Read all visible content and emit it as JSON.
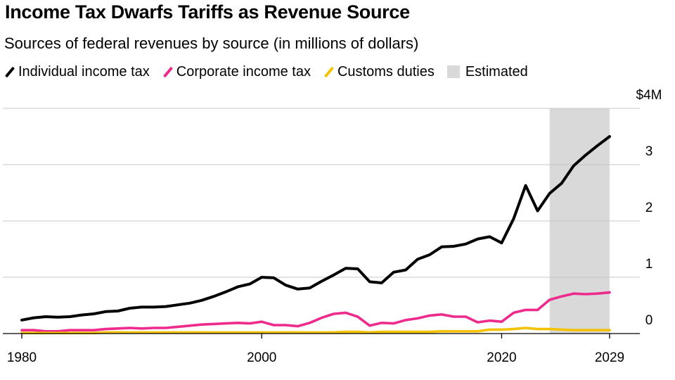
{
  "chart_data": {
    "type": "line",
    "title": "Income Tax Dwarfs Tariffs as Revenue Source",
    "subtitle": "Sources of federal revenues by source (in millions of dollars)",
    "x": [
      1980,
      1981,
      1982,
      1983,
      1984,
      1985,
      1986,
      1987,
      1988,
      1989,
      1990,
      1991,
      1992,
      1993,
      1994,
      1995,
      1996,
      1997,
      1998,
      1999,
      2000,
      2001,
      2002,
      2003,
      2004,
      2005,
      2006,
      2007,
      2008,
      2009,
      2010,
      2011,
      2012,
      2013,
      2014,
      2015,
      2016,
      2017,
      2018,
      2019,
      2020,
      2021,
      2022,
      2023,
      2024,
      2025,
      2026,
      2027,
      2028,
      2029
    ],
    "series": [
      {
        "name": "Individual income tax",
        "color": "#000000",
        "values": [
          0.24,
          0.28,
          0.3,
          0.29,
          0.3,
          0.33,
          0.35,
          0.39,
          0.4,
          0.45,
          0.47,
          0.47,
          0.48,
          0.51,
          0.54,
          0.59,
          0.66,
          0.74,
          0.83,
          0.88,
          1.0,
          0.99,
          0.86,
          0.79,
          0.81,
          0.93,
          1.04,
          1.16,
          1.15,
          0.92,
          0.9,
          1.09,
          1.13,
          1.32,
          1.4,
          1.54,
          1.55,
          1.59,
          1.68,
          1.72,
          1.61,
          2.04,
          2.63,
          2.18,
          2.49,
          2.67,
          2.98,
          3.17,
          3.34,
          3.5
        ]
      },
      {
        "name": "Corporate income tax",
        "color": "#ee2a8c",
        "values": [
          0.06,
          0.06,
          0.04,
          0.04,
          0.06,
          0.06,
          0.06,
          0.08,
          0.09,
          0.1,
          0.09,
          0.1,
          0.1,
          0.12,
          0.14,
          0.16,
          0.17,
          0.18,
          0.19,
          0.18,
          0.21,
          0.15,
          0.15,
          0.13,
          0.19,
          0.28,
          0.35,
          0.37,
          0.3,
          0.14,
          0.19,
          0.18,
          0.24,
          0.27,
          0.32,
          0.34,
          0.3,
          0.3,
          0.2,
          0.23,
          0.21,
          0.37,
          0.42,
          0.42,
          0.6,
          0.66,
          0.71,
          0.7,
          0.71,
          0.73
        ]
      },
      {
        "name": "Customs duties",
        "color": "#f5c200",
        "values": [
          0.01,
          0.01,
          0.01,
          0.01,
          0.01,
          0.01,
          0.01,
          0.02,
          0.02,
          0.02,
          0.02,
          0.02,
          0.02,
          0.02,
          0.02,
          0.02,
          0.02,
          0.02,
          0.02,
          0.02,
          0.02,
          0.02,
          0.02,
          0.02,
          0.02,
          0.02,
          0.02,
          0.03,
          0.03,
          0.02,
          0.03,
          0.03,
          0.03,
          0.03,
          0.03,
          0.04,
          0.04,
          0.04,
          0.04,
          0.07,
          0.07,
          0.08,
          0.1,
          0.08,
          0.08,
          0.07,
          0.06,
          0.06,
          0.06,
          0.06
        ]
      }
    ],
    "shaded_region": {
      "label": "Estimated",
      "x_start": 2024,
      "x_end": 2029,
      "color": "#d9d9d9"
    },
    "xlim": [
      1980,
      2029
    ],
    "ylim": [
      0,
      4
    ],
    "x_tick_labels": [
      "1980",
      "2000",
      "2020",
      "2029"
    ],
    "y_tick_labels": [
      "0",
      "1",
      "2",
      "3",
      "$4M"
    ],
    "grid": true,
    "legend_position": "top-left",
    "y_axis_position": "right"
  }
}
